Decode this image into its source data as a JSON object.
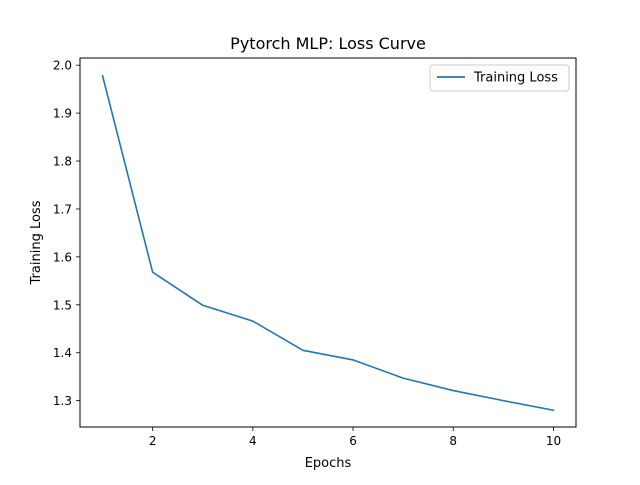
{
  "chart_data": {
    "type": "line",
    "title": "Pytorch MLP: Loss Curve",
    "xlabel": "Epochs",
    "ylabel": "Training Loss",
    "xlim": [
      0.55,
      10.45
    ],
    "ylim": [
      1.245,
      2.015
    ],
    "xticks": [
      2,
      4,
      6,
      8,
      10
    ],
    "yticks": [
      1.3,
      1.4,
      1.5,
      1.6,
      1.7,
      1.8,
      1.9,
      2.0
    ],
    "xtick_labels": [
      "2",
      "4",
      "6",
      "8",
      "10"
    ],
    "ytick_labels": [
      "1.3",
      "1.4",
      "1.5",
      "1.6",
      "1.7",
      "1.8",
      "1.9",
      "2.0"
    ],
    "grid": false,
    "legend_position": "top-right",
    "series": [
      {
        "name": "Training Loss",
        "color": "#1f77b4",
        "x": [
          1,
          2,
          3,
          4,
          5,
          6,
          7,
          8,
          9,
          10
        ],
        "y": [
          1.978,
          1.568,
          1.499,
          1.466,
          1.405,
          1.385,
          1.347,
          1.321,
          1.3,
          1.28
        ]
      }
    ]
  }
}
